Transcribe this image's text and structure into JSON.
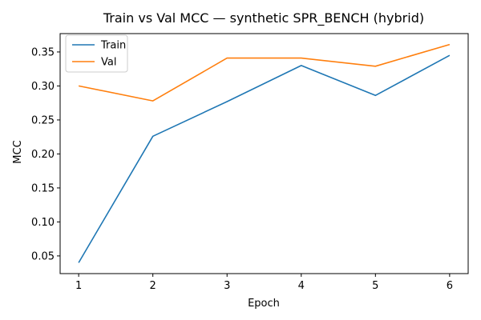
{
  "chart_data": {
    "type": "line",
    "title": "Train vs Val MCC — synthetic SPR_BENCH (hybrid)",
    "xlabel": "Epoch",
    "ylabel": "MCC",
    "x": [
      1,
      2,
      3,
      4,
      5,
      6
    ],
    "series": [
      {
        "name": "Train",
        "color": "#1f77b4",
        "values": [
          0.04,
          0.226,
          0.277,
          0.33,
          0.286,
          0.345
        ]
      },
      {
        "name": "Val",
        "color": "#ff7f0e",
        "values": [
          0.3,
          0.278,
          0.341,
          0.341,
          0.329,
          0.361
        ]
      }
    ],
    "xlim": [
      0.75,
      6.25
    ],
    "ylim": [
      0.024,
      0.377
    ],
    "xticks": [
      "1",
      "2",
      "3",
      "4",
      "5",
      "6"
    ],
    "yticks": [
      "0.05",
      "0.10",
      "0.15",
      "0.20",
      "0.25",
      "0.30",
      "0.35"
    ],
    "legend": {
      "placement": "top-left",
      "entries": [
        "Train",
        "Val"
      ]
    },
    "grid": false
  }
}
